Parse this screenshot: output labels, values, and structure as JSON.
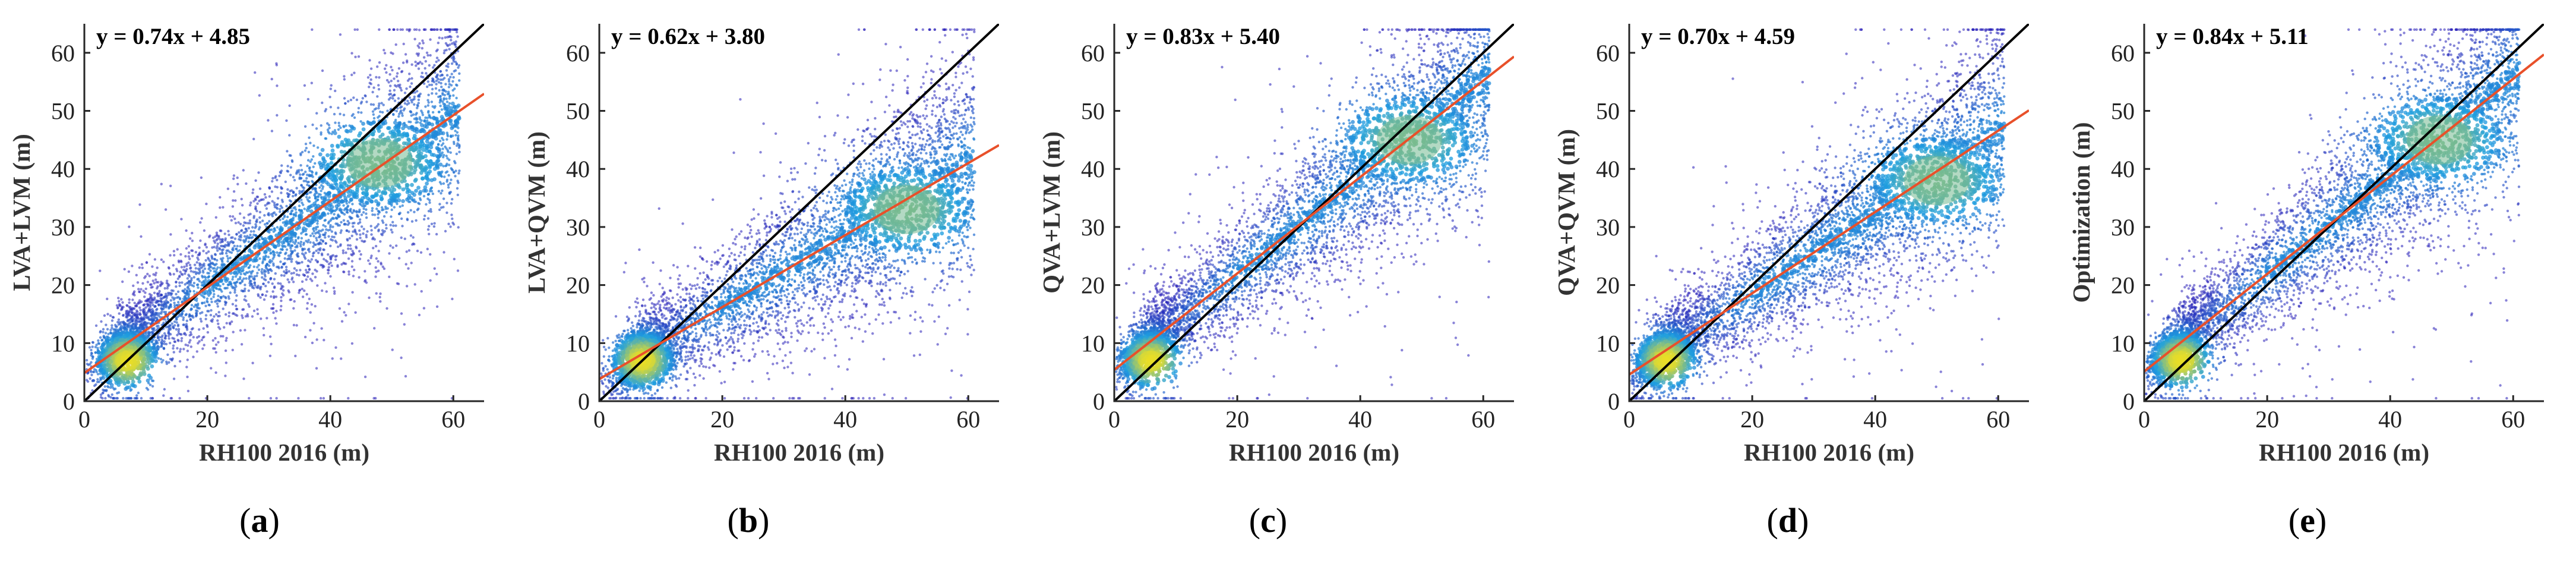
{
  "figure": {
    "colors": {
      "scatter_low": "#2a1fb8",
      "scatter_mid": "#1f9fe0",
      "scatter_high": "#f5e21b",
      "identity_line": "#000000",
      "fit_line": "#e8502a",
      "axis": "#262626"
    }
  },
  "chart_data": [
    {
      "type": "scatter",
      "panel_letter": "a",
      "caption_open": "(",
      "caption_close": ")",
      "equation": "y = 0.74x + 4.85",
      "slope": 0.74,
      "intercept": 4.85,
      "xlabel": "RH100 2016 (m)",
      "ylabel": "LVA+LVM (m)",
      "xlim": [
        0,
        65
      ],
      "ylim": [
        0,
        65
      ],
      "xticks": [
        0,
        20,
        40,
        60
      ],
      "yticks": [
        0,
        10,
        20,
        30,
        40,
        50,
        60
      ],
      "xticklabels": [
        "0",
        "20",
        "40",
        "60"
      ],
      "yticklabels": [
        "0",
        "10",
        "20",
        "30",
        "40",
        "50",
        "60"
      ],
      "identity_line": "y = x",
      "density_hotspots": [
        [
          7,
          7
        ],
        [
          48,
          41
        ]
      ]
    },
    {
      "type": "scatter",
      "panel_letter": "b",
      "caption_open": "(",
      "caption_close": ")",
      "equation": "y = 0.62x + 3.80",
      "slope": 0.62,
      "intercept": 3.8,
      "xlabel": "RH100 2016 (m)",
      "ylabel": "LVA+QVM (m)",
      "xlim": [
        0,
        65
      ],
      "ylim": [
        0,
        65
      ],
      "xticks": [
        0,
        20,
        40,
        60
      ],
      "yticks": [
        0,
        10,
        20,
        30,
        40,
        50,
        60
      ],
      "xticklabels": [
        "0",
        "20",
        "40",
        "60"
      ],
      "yticklabels": [
        "0",
        "10",
        "20",
        "30",
        "40",
        "50",
        "60"
      ],
      "identity_line": "y = x",
      "density_hotspots": [
        [
          7,
          7
        ],
        [
          50,
          33
        ]
      ]
    },
    {
      "type": "scatter",
      "panel_letter": "c",
      "caption_open": "(",
      "caption_close": ")",
      "equation": "y = 0.83x + 5.40",
      "slope": 0.83,
      "intercept": 5.4,
      "xlabel": "RH100 2016 (m)",
      "ylabel": "QVA+LVM (m)",
      "xlim": [
        0,
        65
      ],
      "ylim": [
        0,
        65
      ],
      "xticks": [
        0,
        20,
        40,
        60
      ],
      "yticks": [
        0,
        10,
        20,
        30,
        40,
        50,
        60
      ],
      "xticklabels": [
        "0",
        "20",
        "40",
        "60"
      ],
      "yticklabels": [
        "0",
        "10",
        "20",
        "30",
        "40",
        "50",
        "60"
      ],
      "identity_line": "y = x",
      "density_hotspots": [
        [
          6,
          7
        ],
        [
          48,
          45
        ]
      ]
    },
    {
      "type": "scatter",
      "panel_letter": "d",
      "caption_open": "(",
      "caption_close": ")",
      "equation": "y = 0.70x + 4.59",
      "slope": 0.7,
      "intercept": 4.59,
      "xlabel": "RH100 2016 (m)",
      "ylabel": "QVA+QVM (m)",
      "xlim": [
        0,
        65
      ],
      "ylim": [
        0,
        65
      ],
      "xticks": [
        0,
        20,
        40,
        60
      ],
      "yticks": [
        0,
        10,
        20,
        30,
        40,
        50,
        60
      ],
      "xticklabels": [
        "0",
        "20",
        "40",
        "60"
      ],
      "yticklabels": [
        "0",
        "10",
        "20",
        "30",
        "40",
        "50",
        "60"
      ],
      "identity_line": "y = x",
      "density_hotspots": [
        [
          6,
          7
        ],
        [
          50,
          38
        ]
      ]
    },
    {
      "type": "scatter",
      "panel_letter": "e",
      "caption_open": "(",
      "caption_close": ")",
      "equation": "y = 0.84x + 5.11",
      "slope": 0.84,
      "intercept": 5.11,
      "xlabel": "RH100 2016 (m)",
      "ylabel": "Optimization (m)",
      "xlim": [
        0,
        65
      ],
      "ylim": [
        0,
        65
      ],
      "xticks": [
        0,
        20,
        40,
        60
      ],
      "yticks": [
        0,
        10,
        20,
        30,
        40,
        50,
        60
      ],
      "xticklabels": [
        "0",
        "20",
        "40",
        "60"
      ],
      "yticklabels": [
        "0",
        "10",
        "20",
        "30",
        "40",
        "50",
        "60"
      ],
      "identity_line": "y = x",
      "density_hotspots": [
        [
          6,
          7
        ],
        [
          48,
          45
        ]
      ]
    }
  ]
}
